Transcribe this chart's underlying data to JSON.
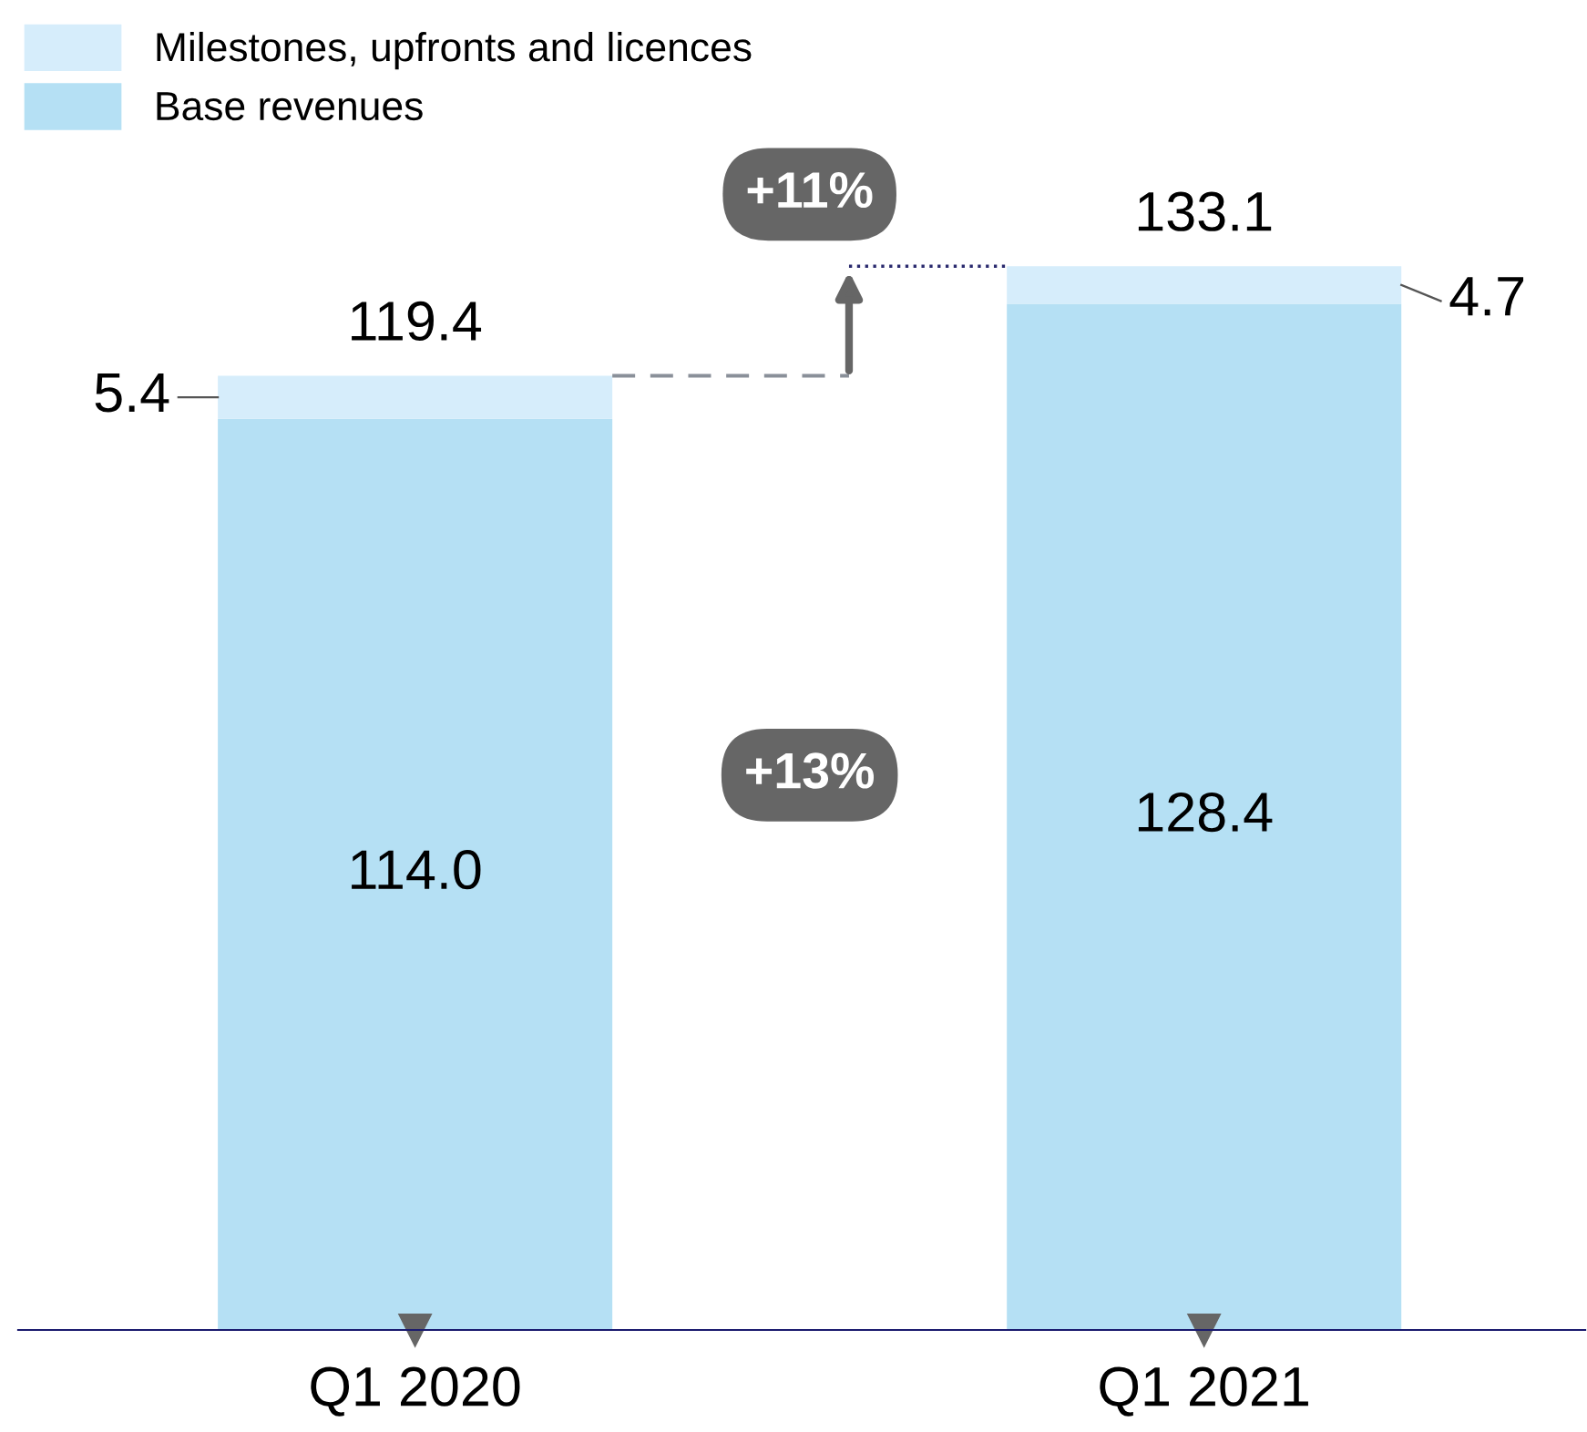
{
  "chart_data": {
    "type": "bar",
    "stacked": true,
    "categories": [
      "Q1 2020",
      "Q1 2021"
    ],
    "series": [
      {
        "name": "Base revenues",
        "color": "#b5e0f4",
        "values": [
          114.0,
          128.4
        ],
        "value_labels": [
          "114.0",
          "128.4"
        ]
      },
      {
        "name": "Milestones, upfronts and licences",
        "color": "#d6edfb",
        "values": [
          5.4,
          4.7
        ],
        "value_labels": [
          "5.4",
          "4.7"
        ]
      }
    ],
    "totals": [
      "119.4",
      "133.1"
    ],
    "annotations": [
      "+11%",
      "+13%"
    ],
    "legend": "top left",
    "grid": false
  }
}
